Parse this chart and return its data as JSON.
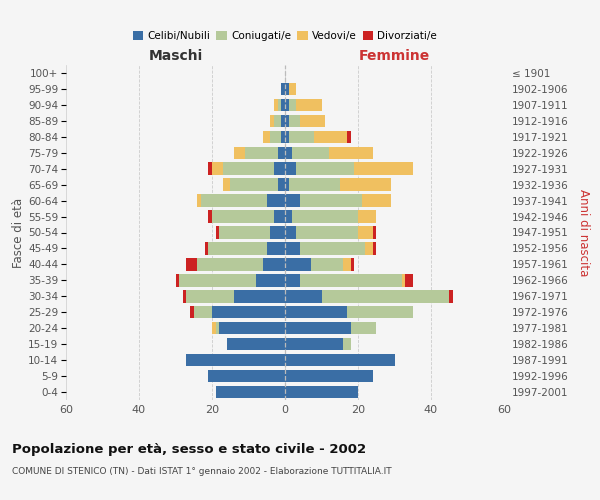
{
  "age_groups": [
    "0-4",
    "5-9",
    "10-14",
    "15-19",
    "20-24",
    "25-29",
    "30-34",
    "35-39",
    "40-44",
    "45-49",
    "50-54",
    "55-59",
    "60-64",
    "65-69",
    "70-74",
    "75-79",
    "80-84",
    "85-89",
    "90-94",
    "95-99",
    "100+"
  ],
  "birth_years": [
    "1997-2001",
    "1992-1996",
    "1987-1991",
    "1982-1986",
    "1977-1981",
    "1972-1976",
    "1967-1971",
    "1962-1966",
    "1957-1961",
    "1952-1956",
    "1947-1951",
    "1942-1946",
    "1937-1941",
    "1932-1936",
    "1927-1931",
    "1922-1926",
    "1917-1921",
    "1912-1916",
    "1907-1911",
    "1902-1906",
    "≤ 1901"
  ],
  "male": {
    "celibi": [
      19,
      21,
      27,
      16,
      18,
      20,
      14,
      8,
      6,
      5,
      4,
      3,
      5,
      2,
      3,
      2,
      1,
      1,
      1,
      1,
      0
    ],
    "coniugati": [
      0,
      0,
      0,
      0,
      1,
      5,
      13,
      21,
      18,
      16,
      14,
      17,
      18,
      13,
      14,
      9,
      3,
      2,
      1,
      0,
      0
    ],
    "vedovi": [
      0,
      0,
      0,
      0,
      1,
      0,
      0,
      0,
      0,
      0,
      0,
      0,
      1,
      2,
      3,
      3,
      2,
      1,
      1,
      0,
      0
    ],
    "divorziati": [
      0,
      0,
      0,
      0,
      0,
      1,
      1,
      1,
      3,
      1,
      1,
      1,
      0,
      0,
      1,
      0,
      0,
      0,
      0,
      0,
      0
    ]
  },
  "female": {
    "nubili": [
      20,
      24,
      30,
      16,
      18,
      17,
      10,
      4,
      7,
      4,
      3,
      2,
      4,
      1,
      3,
      2,
      1,
      1,
      1,
      1,
      0
    ],
    "coniugate": [
      0,
      0,
      0,
      2,
      7,
      18,
      35,
      28,
      9,
      18,
      17,
      18,
      17,
      14,
      16,
      10,
      7,
      3,
      2,
      0,
      0
    ],
    "vedove": [
      0,
      0,
      0,
      0,
      0,
      0,
      0,
      1,
      2,
      2,
      4,
      5,
      8,
      14,
      16,
      12,
      9,
      7,
      7,
      2,
      0
    ],
    "divorziate": [
      0,
      0,
      0,
      0,
      0,
      0,
      1,
      2,
      1,
      1,
      1,
      0,
      0,
      0,
      0,
      0,
      1,
      0,
      0,
      0,
      0
    ]
  },
  "colors": {
    "celibi": "#3a6ea5",
    "coniugati": "#b5c99a",
    "vedovi": "#f0c060",
    "divorziati": "#cc2222"
  },
  "xlim": 60,
  "title": "Popolazione per età, sesso e stato civile - 2002",
  "subtitle": "COMUNE DI STENICO (TN) - Dati ISTAT 1° gennaio 2002 - Elaborazione TUTTITALIA.IT",
  "ylabel": "Fasce di età",
  "ylabel_right": "Anni di nascita",
  "xlabel_left": "Maschi",
  "xlabel_right": "Femmine",
  "bg_color": "#f5f5f5",
  "grid_color": "#cccccc"
}
